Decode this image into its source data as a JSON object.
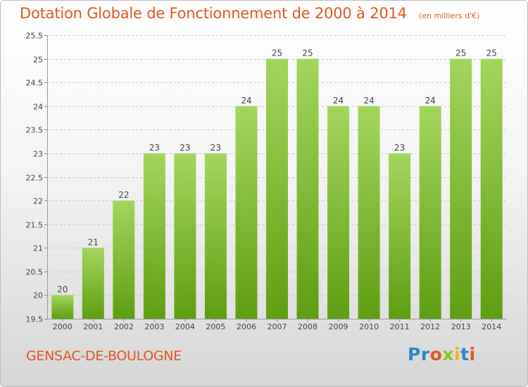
{
  "page": {
    "title": "Dotation Globale de Fonctionnement de 2000 à 2014",
    "subtitle": "(en milliers d'€)",
    "location": "GENSAC-DE-BOULOGNE",
    "brand": "Proxiti",
    "brand_letters": [
      {
        "ch": "P",
        "color": "#2e86c7"
      },
      {
        "ch": "r",
        "color": "#2e86c7"
      },
      {
        "ch": "o",
        "color": "#e2571f"
      },
      {
        "ch": "x",
        "color": "#8fc31f"
      },
      {
        "ch": "i",
        "color": "#f2b21b"
      },
      {
        "ch": "t",
        "color": "#2e86c7"
      },
      {
        "ch": "i",
        "color": "#e2571f"
      }
    ]
  },
  "colors": {
    "accent": "#e2571f",
    "bar_top": "#a4d65e",
    "bar_bottom": "#5f9e12",
    "grid": "#c8c8c8",
    "text": "#444444"
  },
  "chart_data": {
    "type": "bar",
    "title": "Dotation Globale de Fonctionnement de 2000 à 2014",
    "subtitle": "(en milliers d'€)",
    "categories": [
      "2000",
      "2001",
      "2002",
      "2003",
      "2004",
      "2005",
      "2006",
      "2007",
      "2008",
      "2009",
      "2010",
      "2011",
      "2012",
      "2013",
      "2014"
    ],
    "values": [
      20,
      21,
      22,
      23,
      23,
      23,
      24,
      25,
      25,
      24,
      24,
      23,
      24,
      25,
      25
    ],
    "data_labels": [
      "20",
      "21",
      "22",
      "23",
      "23",
      "23",
      "24",
      "25",
      "25",
      "24",
      "24",
      "23",
      "24",
      "25",
      "25"
    ],
    "ylim": [
      19.5,
      25.5
    ],
    "yticks": [
      19.5,
      20,
      20.5,
      21,
      21.5,
      22,
      22.5,
      23,
      23.5,
      24,
      24.5,
      25,
      25.5
    ],
    "ytick_labels": [
      "19.5",
      "20",
      "20.5",
      "21",
      "21.5",
      "22",
      "22.5",
      "23",
      "23.5",
      "24",
      "24.5",
      "25",
      "25.5"
    ],
    "grid": true,
    "xlabel": "",
    "ylabel": ""
  }
}
